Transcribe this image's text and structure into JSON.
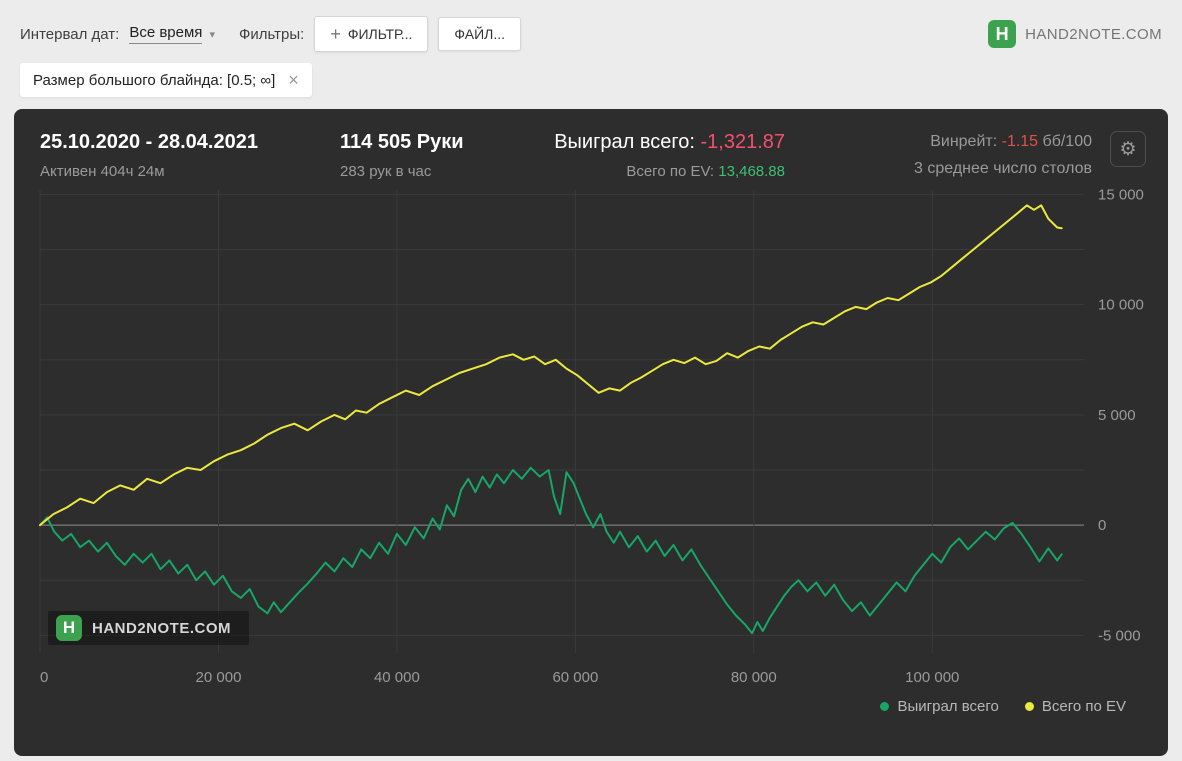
{
  "icons": {
    "gear": "⚙",
    "close": "×",
    "plus": "+",
    "caret": "▾",
    "logo_letter": "H"
  },
  "toolbar": {
    "date_interval_label": "Интервал дат:",
    "date_interval_value": "Все время",
    "filters_label": "Фильтры:",
    "filter_button": "ФИЛЬТР...",
    "file_button": "ФАЙЛ...",
    "brand": "HAND2NOTE.COM"
  },
  "filter_chip": {
    "text": "Размер большого блайнда: [0.5; ∞]"
  },
  "stats": {
    "date_range": "25.10.2020 - 28.04.2021",
    "active_time": "Активен 404ч 24м",
    "hands": "114 505 Руки",
    "hands_per_hour": "283 рук в час",
    "won_label": "Выиграл всего:",
    "won_value": "-1,321.87",
    "ev_label": "Всего по EV:",
    "ev_value": "13,468.88",
    "winrate_label": "Винрейт:",
    "winrate_value": "-1.15",
    "winrate_units": "бб/100",
    "avg_tables": "3 среднее число столов"
  },
  "watermark": "HAND2NOTE.COM",
  "legend": [
    {
      "label": "Выиграл всего",
      "color": "#17a667"
    },
    {
      "label": "Всего по EV",
      "color": "#ece93e"
    }
  ],
  "chart_data": {
    "type": "line",
    "title": "",
    "xlabel": "",
    "ylabel": "",
    "xlim": [
      0,
      117000
    ],
    "ylim": [
      -5800,
      15200
    ],
    "grid": true,
    "grid_minor_step": 2500,
    "grid_color": "#3a3a3a",
    "zero_line_color": "#8f8f8f",
    "x_ticks": [
      {
        "v": 0,
        "label": "0"
      },
      {
        "v": 20000,
        "label": "20 000"
      },
      {
        "v": 40000,
        "label": "40 000"
      },
      {
        "v": 60000,
        "label": "60 000"
      },
      {
        "v": 80000,
        "label": "80 000"
      },
      {
        "v": 100000,
        "label": "100 000"
      }
    ],
    "y_ticks": [
      {
        "v": 15000,
        "label": "15 000"
      },
      {
        "v": 10000,
        "label": "10 000"
      },
      {
        "v": 5000,
        "label": "5 000"
      },
      {
        "v": 0,
        "label": "0"
      },
      {
        "v": -5000,
        "label": "-5 000"
      }
    ],
    "series": [
      {
        "name": "Выиграл всего",
        "color": "#17a667",
        "points": [
          [
            0,
            0
          ],
          [
            800,
            350
          ],
          [
            1600,
            -300
          ],
          [
            2500,
            -700
          ],
          [
            3500,
            -400
          ],
          [
            4500,
            -1000
          ],
          [
            5500,
            -700
          ],
          [
            6500,
            -1200
          ],
          [
            7500,
            -800
          ],
          [
            8500,
            -1400
          ],
          [
            9500,
            -1800
          ],
          [
            10500,
            -1300
          ],
          [
            11500,
            -1700
          ],
          [
            12500,
            -1300
          ],
          [
            13500,
            -2000
          ],
          [
            14500,
            -1600
          ],
          [
            15500,
            -2200
          ],
          [
            16500,
            -1800
          ],
          [
            17500,
            -2500
          ],
          [
            18500,
            -2100
          ],
          [
            19500,
            -2700
          ],
          [
            20500,
            -2300
          ],
          [
            21500,
            -3000
          ],
          [
            22500,
            -3300
          ],
          [
            23500,
            -2900
          ],
          [
            24500,
            -3700
          ],
          [
            25500,
            -4000
          ],
          [
            26200,
            -3500
          ],
          [
            27000,
            -3950
          ],
          [
            28000,
            -3500
          ],
          [
            29000,
            -3050
          ],
          [
            30000,
            -2650
          ],
          [
            31000,
            -2200
          ],
          [
            32000,
            -1700
          ],
          [
            33000,
            -2100
          ],
          [
            34000,
            -1500
          ],
          [
            35000,
            -1900
          ],
          [
            36000,
            -1100
          ],
          [
            37000,
            -1500
          ],
          [
            38000,
            -800
          ],
          [
            39000,
            -1300
          ],
          [
            40000,
            -400
          ],
          [
            41000,
            -900
          ],
          [
            42000,
            -100
          ],
          [
            43000,
            -600
          ],
          [
            44000,
            300
          ],
          [
            44800,
            -200
          ],
          [
            45600,
            900
          ],
          [
            46400,
            400
          ],
          [
            47200,
            1600
          ],
          [
            48000,
            2100
          ],
          [
            48800,
            1500
          ],
          [
            49600,
            2200
          ],
          [
            50400,
            1700
          ],
          [
            51200,
            2300
          ],
          [
            52000,
            1900
          ],
          [
            53000,
            2500
          ],
          [
            54000,
            2100
          ],
          [
            55000,
            2600
          ],
          [
            56000,
            2200
          ],
          [
            57000,
            2500
          ],
          [
            57600,
            1300
          ],
          [
            58300,
            500
          ],
          [
            59000,
            2400
          ],
          [
            59800,
            1900
          ],
          [
            60500,
            1200
          ],
          [
            61200,
            500
          ],
          [
            62000,
            -100
          ],
          [
            62800,
            500
          ],
          [
            63500,
            -300
          ],
          [
            64300,
            -800
          ],
          [
            65000,
            -300
          ],
          [
            66000,
            -1000
          ],
          [
            67000,
            -500
          ],
          [
            68000,
            -1200
          ],
          [
            69000,
            -700
          ],
          [
            70000,
            -1400
          ],
          [
            71000,
            -900
          ],
          [
            72000,
            -1600
          ],
          [
            73000,
            -1100
          ],
          [
            74000,
            -1800
          ],
          [
            75000,
            -2400
          ],
          [
            76000,
            -3000
          ],
          [
            77000,
            -3600
          ],
          [
            78000,
            -4100
          ],
          [
            79000,
            -4500
          ],
          [
            79800,
            -4900
          ],
          [
            80400,
            -4400
          ],
          [
            81000,
            -4800
          ],
          [
            81800,
            -4200
          ],
          [
            82600,
            -3700
          ],
          [
            83400,
            -3200
          ],
          [
            84200,
            -2800
          ],
          [
            85000,
            -2500
          ],
          [
            86000,
            -3000
          ],
          [
            87000,
            -2600
          ],
          [
            88000,
            -3200
          ],
          [
            89000,
            -2700
          ],
          [
            90000,
            -3400
          ],
          [
            91000,
            -3900
          ],
          [
            92000,
            -3500
          ],
          [
            93000,
            -4100
          ],
          [
            94000,
            -3600
          ],
          [
            95000,
            -3100
          ],
          [
            96000,
            -2600
          ],
          [
            97000,
            -3000
          ],
          [
            98000,
            -2300
          ],
          [
            99000,
            -1800
          ],
          [
            100000,
            -1300
          ],
          [
            101000,
            -1700
          ],
          [
            102000,
            -1000
          ],
          [
            103000,
            -600
          ],
          [
            104000,
            -1100
          ],
          [
            105000,
            -700
          ],
          [
            106000,
            -300
          ],
          [
            107000,
            -650
          ],
          [
            108000,
            -150
          ],
          [
            109000,
            100
          ],
          [
            110000,
            -400
          ],
          [
            111000,
            -1000
          ],
          [
            112000,
            -1650
          ],
          [
            113000,
            -1050
          ],
          [
            114000,
            -1600
          ],
          [
            114505,
            -1322
          ]
        ]
      },
      {
        "name": "Всего по EV",
        "color": "#ece93e",
        "points": [
          [
            0,
            0
          ],
          [
            1500,
            500
          ],
          [
            3000,
            800
          ],
          [
            4500,
            1200
          ],
          [
            6000,
            1000
          ],
          [
            7500,
            1500
          ],
          [
            9000,
            1800
          ],
          [
            10500,
            1600
          ],
          [
            12000,
            2100
          ],
          [
            13500,
            1900
          ],
          [
            15000,
            2300
          ],
          [
            16500,
            2600
          ],
          [
            18000,
            2500
          ],
          [
            19500,
            2900
          ],
          [
            21000,
            3200
          ],
          [
            22500,
            3400
          ],
          [
            24000,
            3700
          ],
          [
            25500,
            4100
          ],
          [
            27000,
            4400
          ],
          [
            28500,
            4600
          ],
          [
            30000,
            4300
          ],
          [
            31500,
            4700
          ],
          [
            33000,
            5000
          ],
          [
            34200,
            4800
          ],
          [
            35400,
            5200
          ],
          [
            36600,
            5100
          ],
          [
            38000,
            5500
          ],
          [
            39500,
            5800
          ],
          [
            41000,
            6100
          ],
          [
            42500,
            5900
          ],
          [
            44000,
            6300
          ],
          [
            45500,
            6600
          ],
          [
            47000,
            6900
          ],
          [
            48500,
            7100
          ],
          [
            50000,
            7300
          ],
          [
            51500,
            7600
          ],
          [
            53000,
            7750
          ],
          [
            54200,
            7500
          ],
          [
            55400,
            7650
          ],
          [
            56600,
            7300
          ],
          [
            57800,
            7500
          ],
          [
            59000,
            7100
          ],
          [
            60200,
            6800
          ],
          [
            61400,
            6400
          ],
          [
            62600,
            6000
          ],
          [
            63800,
            6200
          ],
          [
            65000,
            6100
          ],
          [
            66200,
            6450
          ],
          [
            67400,
            6700
          ],
          [
            68600,
            7000
          ],
          [
            69800,
            7300
          ],
          [
            71000,
            7500
          ],
          [
            72200,
            7350
          ],
          [
            73400,
            7600
          ],
          [
            74600,
            7300
          ],
          [
            75800,
            7450
          ],
          [
            77000,
            7800
          ],
          [
            78200,
            7600
          ],
          [
            79400,
            7900
          ],
          [
            80600,
            8100
          ],
          [
            81800,
            8000
          ],
          [
            83000,
            8400
          ],
          [
            84200,
            8700
          ],
          [
            85400,
            9000
          ],
          [
            86600,
            9200
          ],
          [
            87800,
            9100
          ],
          [
            89000,
            9400
          ],
          [
            90200,
            9700
          ],
          [
            91400,
            9900
          ],
          [
            92600,
            9800
          ],
          [
            93800,
            10100
          ],
          [
            95000,
            10300
          ],
          [
            96200,
            10200
          ],
          [
            97400,
            10500
          ],
          [
            98600,
            10800
          ],
          [
            99800,
            11000
          ],
          [
            101000,
            11300
          ],
          [
            102200,
            11700
          ],
          [
            103400,
            12100
          ],
          [
            104600,
            12500
          ],
          [
            105800,
            12900
          ],
          [
            107000,
            13300
          ],
          [
            108200,
            13700
          ],
          [
            109400,
            14100
          ],
          [
            110600,
            14500
          ],
          [
            111400,
            14300
          ],
          [
            112200,
            14500
          ],
          [
            113000,
            13900
          ],
          [
            114000,
            13500
          ],
          [
            114505,
            13469
          ]
        ]
      }
    ]
  }
}
